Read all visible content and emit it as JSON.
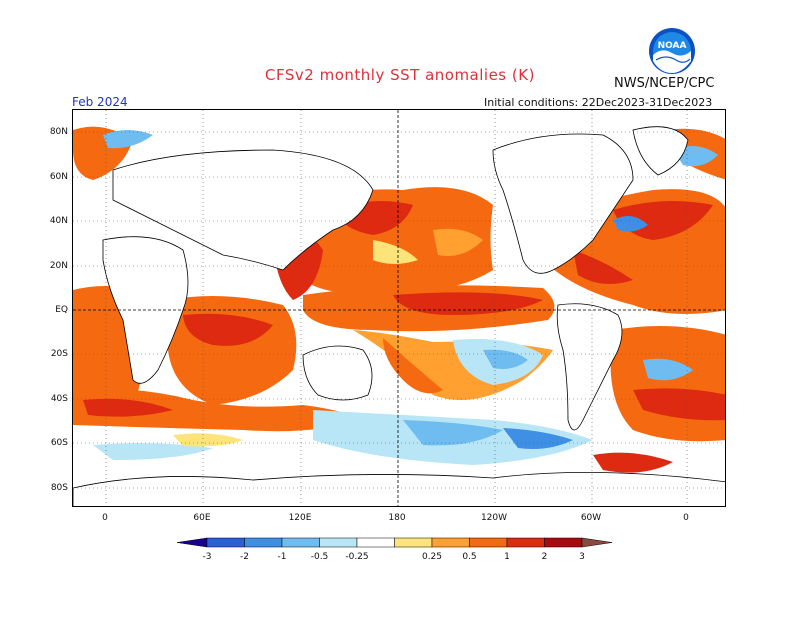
{
  "header": {
    "title": "CFSv2 monthly SST anomalies (K)",
    "org": "NWS/NCEP/CPC",
    "logo_text": "NOAA",
    "month": "Feb 2024",
    "initial_conditions": "Initial conditions: 22Dec2023-31Dec2023"
  },
  "axes": {
    "lat_labels": [
      "80N",
      "60N",
      "40N",
      "20N",
      "EQ",
      "20S",
      "40S",
      "60S",
      "80S"
    ],
    "lon_labels": [
      "0",
      "60E",
      "120E",
      "180",
      "120W",
      "60W",
      "0"
    ]
  },
  "legend": {
    "ticks": [
      "-3",
      "-2",
      "-1",
      "-0.5",
      "-0.25",
      "0.25",
      "0.5",
      "1",
      "2",
      "3"
    ],
    "colors": [
      "#1a0090",
      "#2a5fd8",
      "#3f8fe5",
      "#6fbcf0",
      "#b8e6f7",
      "#ffffff",
      "#fde47a",
      "#ffa030",
      "#f56a10",
      "#dd2a10",
      "#a80a10",
      "#8b4a40"
    ]
  },
  "palette": {
    "warm_strong": "#dd2a10",
    "warm": "#f56a10",
    "warm_light": "#ffa030",
    "yellow": "#fde47a",
    "cool_light": "#b8e6f7",
    "cool": "#6fbcf0",
    "cool_strong": "#3f8fe5",
    "land": "#ffffff",
    "title_red": "#e0303a",
    "month_blue": "#2233cc"
  }
}
